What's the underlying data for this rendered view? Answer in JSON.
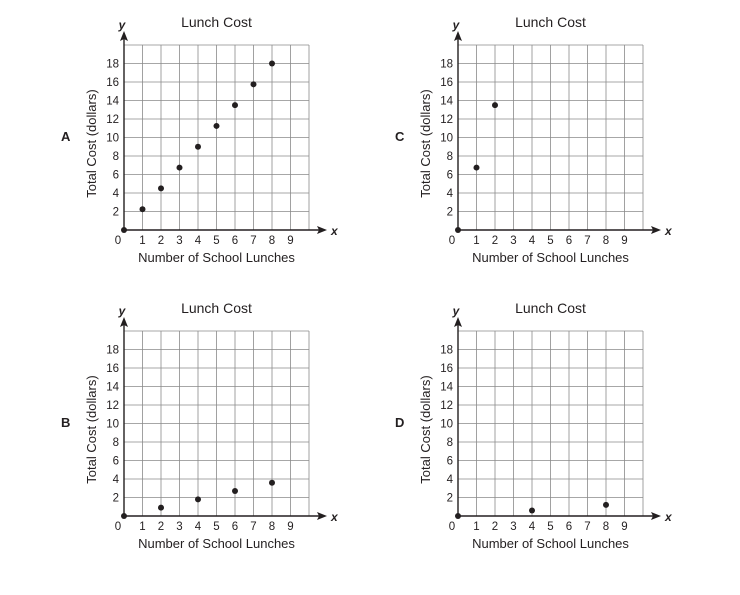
{
  "chart_data": [
    {
      "option": "A",
      "type": "scatter",
      "title": "Lunch Cost",
      "xlabel": "Number of School Lunches",
      "ylabel": "Total Cost (dollars)",
      "x_axis_name": "x",
      "y_axis_name": "y",
      "xlim": [
        0,
        10
      ],
      "ylim": [
        0,
        20
      ],
      "x_ticks": [
        "0",
        "1",
        "2",
        "3",
        "4",
        "5",
        "6",
        "7",
        "8",
        "9"
      ],
      "y_ticks": [
        "2",
        "4",
        "6",
        "8",
        "10",
        "12",
        "14",
        "16",
        "18"
      ],
      "grid": true,
      "points": [
        {
          "x": 0,
          "y": 0
        },
        {
          "x": 1,
          "y": 2.25
        },
        {
          "x": 2,
          "y": 4.5
        },
        {
          "x": 3,
          "y": 6.75
        },
        {
          "x": 4,
          "y": 9
        },
        {
          "x": 5,
          "y": 11.25
        },
        {
          "x": 6,
          "y": 13.5
        },
        {
          "x": 7,
          "y": 15.75
        },
        {
          "x": 8,
          "y": 18
        }
      ]
    },
    {
      "option": "C",
      "type": "scatter",
      "title": "Lunch Cost",
      "xlabel": "Number of School Lunches",
      "ylabel": "Total Cost (dollars)",
      "x_axis_name": "x",
      "y_axis_name": "y",
      "xlim": [
        0,
        10
      ],
      "ylim": [
        0,
        20
      ],
      "x_ticks": [
        "0",
        "1",
        "2",
        "3",
        "4",
        "5",
        "6",
        "7",
        "8",
        "9"
      ],
      "y_ticks": [
        "2",
        "4",
        "6",
        "8",
        "10",
        "12",
        "14",
        "16",
        "18"
      ],
      "grid": true,
      "points": [
        {
          "x": 0,
          "y": 0
        },
        {
          "x": 1,
          "y": 6.75
        },
        {
          "x": 2,
          "y": 13.5
        }
      ]
    },
    {
      "option": "B",
      "type": "scatter",
      "title": "Lunch Cost",
      "xlabel": "Number of School Lunches",
      "ylabel": "Total Cost (dollars)",
      "x_axis_name": "x",
      "y_axis_name": "y",
      "xlim": [
        0,
        10
      ],
      "ylim": [
        0,
        20
      ],
      "x_ticks": [
        "0",
        "1",
        "2",
        "3",
        "4",
        "5",
        "6",
        "7",
        "8",
        "9"
      ],
      "y_ticks": [
        "2",
        "4",
        "6",
        "8",
        "10",
        "12",
        "14",
        "16",
        "18"
      ],
      "grid": true,
      "points": [
        {
          "x": 0,
          "y": 0
        },
        {
          "x": 2,
          "y": 0.9
        },
        {
          "x": 4,
          "y": 1.8
        },
        {
          "x": 6,
          "y": 2.7
        },
        {
          "x": 8,
          "y": 3.6
        }
      ]
    },
    {
      "option": "D",
      "type": "scatter",
      "title": "Lunch Cost",
      "xlabel": "Number of School Lunches",
      "ylabel": "Total Cost (dollars)",
      "x_axis_name": "x",
      "y_axis_name": "y",
      "xlim": [
        0,
        10
      ],
      "ylim": [
        0,
        20
      ],
      "x_ticks": [
        "0",
        "1",
        "2",
        "3",
        "4",
        "5",
        "6",
        "7",
        "8",
        "9"
      ],
      "y_ticks": [
        "2",
        "4",
        "6",
        "8",
        "10",
        "12",
        "14",
        "16",
        "18"
      ],
      "grid": true,
      "points": [
        {
          "x": 0,
          "y": 0
        },
        {
          "x": 4,
          "y": 0.6
        },
        {
          "x": 8,
          "y": 1.2
        }
      ]
    }
  ]
}
